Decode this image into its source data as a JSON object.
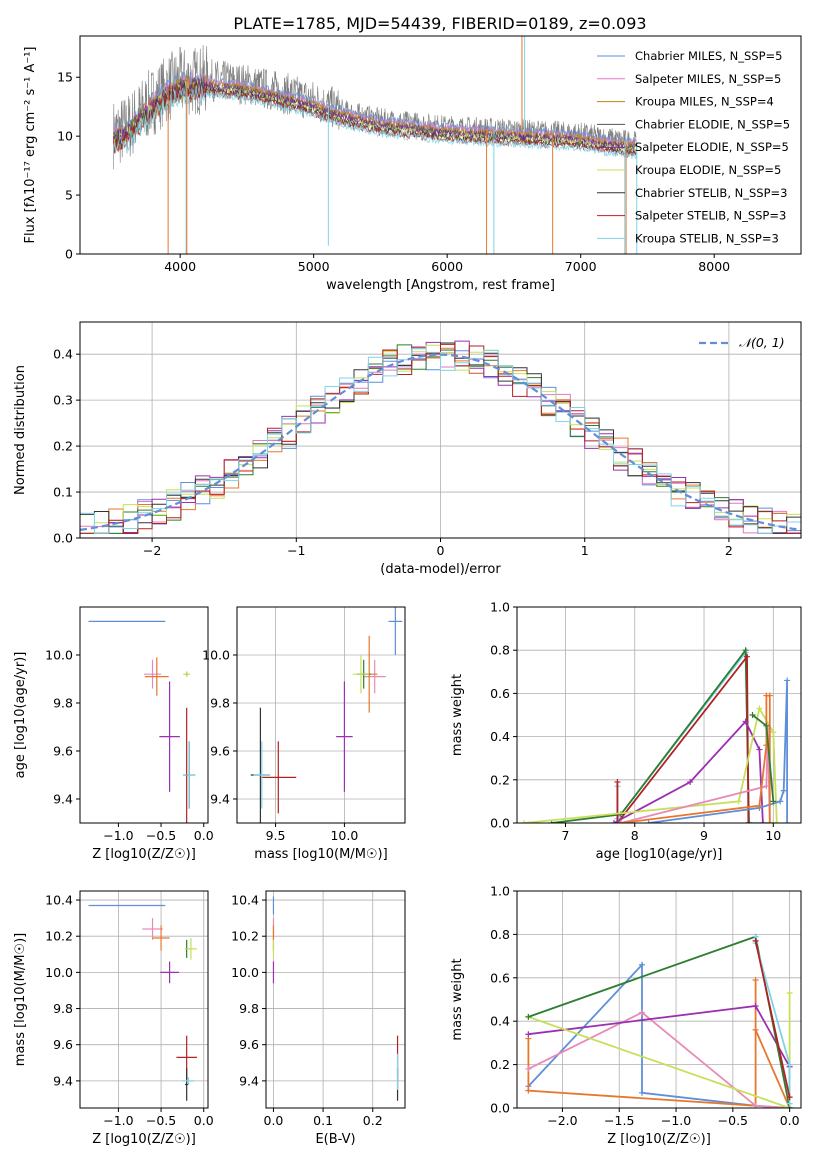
{
  "figure_title": "PLATE=1785, MJD=54439, FIBERID=0189, z=0.093",
  "series_colors": {
    "chabrier_miles": "#5f8fd9",
    "salpeter_miles": "#e377c2",
    "kroupa_miles": "#b8860b",
    "chabrier_elodie": "#555555",
    "salpeter_elodie": "#7b1fa2",
    "kroupa_elodie": "#c6e05a",
    "chabrier_stelib": "#333333",
    "salpeter_stelib": "#b22222",
    "kroupa_stelib": "#7fd3e8",
    "orange": "#e8772e",
    "purple": "#9b30b0",
    "green": "#2e7d32",
    "lime": "#c6e05a",
    "pink": "#e88ab8",
    "blue": "#5f8fd9",
    "cyan": "#7fd3e8",
    "red": "#b22222"
  },
  "chart_data": [
    {
      "id": "spectrum",
      "type": "line",
      "title": "PLATE=1785, MJD=54439, FIBERID=0189, z=0.093",
      "xlabel": "wavelength [Angstrom, rest frame]",
      "ylabel": "Flux [fλ10⁻¹⁷ erg cm⁻² s⁻¹ A⁻¹]",
      "xlim": [
        3250,
        8650
      ],
      "ylim": [
        0,
        18.5
      ],
      "xticks": [
        4000,
        5000,
        6000,
        7000,
        8000
      ],
      "yticks": [
        0,
        5,
        10,
        15
      ],
      "grid": false,
      "legend_position": "top-right",
      "legend": [
        "Chabrier MILES, N_SSP=5",
        "Salpeter MILES, N_SSP=5",
        "Kroupa MILES, N_SSP=4",
        "Chabrier ELODIE, N_SSP=5",
        "Salpeter ELODIE, N_SSP=5",
        "Kroupa ELODIE, N_SSP=5",
        "Chabrier STELIB, N_SSP=3",
        "Salpeter STELIB, N_SSP=3",
        "Kroupa STELIB, N_SSP=3"
      ],
      "legend_colors": [
        "#5f8fd9",
        "#e377c2",
        "#b8860b",
        "#555555",
        "#7b1fa2",
        "#c6e05a",
        "#333333",
        "#b22222",
        "#7fd3e8"
      ],
      "continuum_x": [
        3500,
        3600,
        3750,
        3900,
        4000,
        4200,
        4500,
        4800,
        5000,
        5200,
        5500,
        6000,
        6500,
        7000,
        7200,
        7400
      ],
      "continuum_y": [
        10.2,
        10.6,
        12.5,
        14.0,
        14.6,
        14.8,
        14.4,
        13.6,
        13.0,
        12.2,
        11.4,
        10.8,
        10.5,
        10.2,
        9.8,
        9.5
      ],
      "spikes_x": [
        3910,
        4045,
        4050,
        5110,
        6295,
        6350,
        6560,
        6580,
        6790,
        7330,
        7340,
        7420
      ],
      "spikes_y": [
        0,
        0,
        0,
        0.7,
        0,
        0,
        18.5,
        18.5,
        0,
        0,
        0,
        0
      ]
    },
    {
      "id": "residuals",
      "type": "histogram",
      "xlabel": "(data-model)/error",
      "ylabel": "Normed distribution",
      "xlim": [
        -2.5,
        2.5
      ],
      "ylim": [
        0,
        0.47
      ],
      "xticks": [
        -2,
        -1,
        0,
        1,
        2
      ],
      "yticks": [
        0.0,
        0.1,
        0.2,
        0.3,
        0.4
      ],
      "grid": true,
      "legend_position": "top-right",
      "legend": [
        "𝒩(0, 1)"
      ],
      "reference_curve": {
        "mean": 0,
        "sigma": 1
      }
    },
    {
      "id": "age_vs_z",
      "type": "scatter",
      "xlabel": "Z [log10(Z/Z☉)]",
      "ylabel": "age  [log10(age/yr)]",
      "xlim": [
        -1.45,
        0.05
      ],
      "ylim": [
        9.3,
        10.2
      ],
      "xticks": [
        -1.0,
        -0.5,
        0.0
      ],
      "yticks": [
        9.4,
        9.6,
        9.8,
        10.0
      ],
      "grid": false,
      "points": [
        {
          "x": -0.9,
          "y": 10.14,
          "xerr": 0.45,
          "yerr": 0.0,
          "color": "#5f8fd9"
        },
        {
          "x": -0.6,
          "y": 9.92,
          "xerr": 0.1,
          "yerr": 0.06,
          "color": "#e88ab8"
        },
        {
          "x": -0.55,
          "y": 9.91,
          "xerr": 0.14,
          "yerr": 0.08,
          "color": "#e8772e"
        },
        {
          "x": -0.2,
          "y": 9.92,
          "xerr": 0.02,
          "yerr": 0.01,
          "color": "#2e7d32"
        },
        {
          "x": -0.2,
          "y": 9.92,
          "xerr": 0.04,
          "yerr": 0.01,
          "color": "#c6e05a"
        },
        {
          "x": -0.4,
          "y": 9.66,
          "xerr": 0.12,
          "yerr": 0.23,
          "color": "#9b30b0"
        },
        {
          "x": -0.2,
          "y": 9.5,
          "xerr": 0.02,
          "yerr": 0.28,
          "color": "#b22222"
        },
        {
          "x": -0.17,
          "y": 9.5,
          "xerr": 0.07,
          "yerr": 0.14,
          "color": "#333333"
        },
        {
          "x": -0.17,
          "y": 9.5,
          "xerr": 0.07,
          "yerr": 0.14,
          "color": "#7fd3e8"
        }
      ]
    },
    {
      "id": "age_vs_mass",
      "type": "scatter",
      "xlabel": "mass [log10(M/M☉)]",
      "ylabel": "",
      "xlim": [
        9.22,
        10.44
      ],
      "ylim": [
        9.3,
        10.2
      ],
      "xticks": [
        9.5,
        10.0
      ],
      "yticks": [
        9.4,
        9.6,
        9.8,
        10.0
      ],
      "grid": true,
      "points": [
        {
          "x": 10.37,
          "y": 10.14,
          "xerr": 0.05,
          "yerr": 0.14,
          "color": "#5f8fd9"
        },
        {
          "x": 10.22,
          "y": 9.91,
          "xerr": 0.08,
          "yerr": 0.07,
          "color": "#e88ab8"
        },
        {
          "x": 10.18,
          "y": 9.92,
          "xerr": 0.06,
          "yerr": 0.16,
          "color": "#e8772e"
        },
        {
          "x": 10.14,
          "y": 9.92,
          "xerr": 0.05,
          "yerr": 0.06,
          "color": "#2e7d32"
        },
        {
          "x": 10.12,
          "y": 9.92,
          "xerr": 0.06,
          "yerr": 0.08,
          "color": "#c6e05a"
        },
        {
          "x": 10.0,
          "y": 9.66,
          "xerr": 0.06,
          "yerr": 0.23,
          "color": "#9b30b0"
        },
        {
          "x": 9.52,
          "y": 9.49,
          "xerr": 0.13,
          "yerr": 0.15,
          "color": "#b22222"
        },
        {
          "x": 9.39,
          "y": 9.5,
          "xerr": 0.07,
          "yerr": 0.28,
          "color": "#333333"
        },
        {
          "x": 9.4,
          "y": 9.5,
          "xerr": 0.06,
          "yerr": 0.14,
          "color": "#7fd3e8"
        }
      ]
    },
    {
      "id": "weight_vs_age",
      "type": "line",
      "xlabel": "age  [log10(age/yr)]",
      "ylabel": "mass weight",
      "xlim": [
        6.3,
        10.4
      ],
      "ylim": [
        0,
        1.0
      ],
      "xticks": [
        7,
        8,
        9,
        10
      ],
      "yticks": [
        0.0,
        0.2,
        0.4,
        0.6,
        0.8,
        1.0
      ],
      "grid": true,
      "series": [
        {
          "color": "#7fd3e8",
          "x": [
            7.75,
            7.75,
            9.6,
            9.65,
            9.95
          ],
          "y": [
            0.17,
            0.02,
            0.79,
            0.0,
            0.0
          ]
        },
        {
          "color": "#2e7d32",
          "x": [
            6.8,
            7.8,
            9.6,
            9.65
          ],
          "y": [
            0.0,
            0.04,
            0.8,
            0.0
          ]
        },
        {
          "color": "#b22222",
          "x": [
            7.75,
            7.75,
            9.62,
            9.64
          ],
          "y": [
            0.19,
            0.0,
            0.77,
            0.0
          ]
        },
        {
          "color": "#9b30b0",
          "x": [
            7.7,
            8.8,
            9.6,
            9.8,
            9.85
          ],
          "y": [
            0.0,
            0.19,
            0.47,
            0.34,
            0.0
          ]
        },
        {
          "color": "#c6e05a",
          "x": [
            6.4,
            9.5,
            9.8,
            10.0,
            10.05,
            10.0
          ],
          "y": [
            0.0,
            0.1,
            0.53,
            0.42,
            0.0,
            0.0
          ]
        },
        {
          "color": "#e88ab8",
          "x": [
            7.8,
            9.9,
            9.92,
            9.95
          ],
          "y": [
            0.0,
            0.17,
            0.44,
            0.0
          ]
        },
        {
          "color": "#5f8fd9",
          "x": [
            8.2,
            9.8,
            10.1,
            10.15,
            10.2,
            10.2
          ],
          "y": [
            0.0,
            0.07,
            0.1,
            0.15,
            0.66,
            0.0
          ]
        },
        {
          "color": "#e8772e",
          "x": [
            7.8,
            9.8,
            9.9,
            9.9,
            9.95,
            9.95
          ],
          "y": [
            0.0,
            0.08,
            0.36,
            0.59,
            0.59,
            0.0
          ]
        },
        {
          "color": "#2e7d32",
          "x": [
            9.7,
            9.9,
            10.0
          ],
          "y": [
            0.5,
            0.45,
            0.1
          ]
        }
      ]
    },
    {
      "id": "mass_vs_z",
      "type": "scatter",
      "xlabel": "Z [log10(Z/Z☉)]",
      "ylabel": "mass [log10(M/M☉)]",
      "xlim": [
        -1.45,
        0.05
      ],
      "ylim": [
        9.25,
        10.45
      ],
      "xticks": [
        -1.0,
        -0.5,
        0.0
      ],
      "yticks": [
        9.4,
        9.6,
        9.8,
        10.0,
        10.2,
        10.4
      ],
      "grid": true,
      "points": [
        {
          "x": -0.9,
          "y": 10.37,
          "xerr": 0.45,
          "yerr": 0.0,
          "color": "#5f8fd9"
        },
        {
          "x": -0.6,
          "y": 10.24,
          "xerr": 0.12,
          "yerr": 0.06,
          "color": "#e88ab8"
        },
        {
          "x": -0.5,
          "y": 10.19,
          "xerr": 0.1,
          "yerr": 0.07,
          "color": "#e8772e"
        },
        {
          "x": -0.2,
          "y": 10.13,
          "xerr": 0.02,
          "yerr": 0.05,
          "color": "#2e7d32"
        },
        {
          "x": -0.15,
          "y": 10.13,
          "xerr": 0.07,
          "yerr": 0.06,
          "color": "#c6e05a"
        },
        {
          "x": -0.4,
          "y": 10.0,
          "xerr": 0.11,
          "yerr": 0.06,
          "color": "#9b30b0"
        },
        {
          "x": -0.2,
          "y": 9.53,
          "xerr": 0.12,
          "yerr": 0.12,
          "color": "#b22222"
        },
        {
          "x": -0.2,
          "y": 9.38,
          "xerr": 0.02,
          "yerr": 0.09,
          "color": "#333333"
        },
        {
          "x": -0.18,
          "y": 9.4,
          "xerr": 0.07,
          "yerr": 0.02,
          "color": "#7fd3e8"
        }
      ]
    },
    {
      "id": "mass_vs_ebv",
      "type": "scatter",
      "xlabel": "E(B-V)",
      "ylabel": "",
      "xlim": [
        -0.015,
        0.265
      ],
      "ylim": [
        9.25,
        10.45
      ],
      "xticks": [
        0.0,
        0.1,
        0.2
      ],
      "yticks": [
        9.4,
        9.6,
        9.8,
        10.0,
        10.2,
        10.4
      ],
      "grid": true,
      "points": [
        {
          "x": 0.0,
          "y": 10.37,
          "xerr": 0.0,
          "yerr": 0.05,
          "color": "#5f8fd9"
        },
        {
          "x": 0.0,
          "y": 10.24,
          "xerr": 0.0,
          "yerr": 0.06,
          "color": "#e88ab8"
        },
        {
          "x": 0.0,
          "y": 10.19,
          "xerr": 0.0,
          "yerr": 0.07,
          "color": "#e8772e"
        },
        {
          "x": 0.0,
          "y": 10.13,
          "xerr": 0.0,
          "yerr": 0.05,
          "color": "#c6e05a"
        },
        {
          "x": 0.0,
          "y": 10.0,
          "xerr": 0.0,
          "yerr": 0.06,
          "color": "#9b30b0"
        },
        {
          "x": 0.25,
          "y": 9.53,
          "xerr": 0.0,
          "yerr": 0.12,
          "color": "#b22222"
        },
        {
          "x": 0.25,
          "y": 9.38,
          "xerr": 0.0,
          "yerr": 0.09,
          "color": "#333333"
        },
        {
          "x": 0.25,
          "y": 9.45,
          "xerr": 0.0,
          "yerr": 0.1,
          "color": "#7fd3e8"
        }
      ]
    },
    {
      "id": "weight_vs_z",
      "type": "line",
      "xlabel": "Z [log10(Z/Z☉)]",
      "ylabel": "mass weight",
      "xlim": [
        -2.4,
        0.1
      ],
      "ylim": [
        0,
        1.0
      ],
      "xticks": [
        -2.0,
        -1.5,
        -1.0,
        -0.5,
        0.0
      ],
      "yticks": [
        0.0,
        0.2,
        0.4,
        0.6,
        0.8,
        1.0
      ],
      "grid": true,
      "series": [
        {
          "color": "#5f8fd9",
          "x": [
            -2.3,
            -1.3,
            -1.3,
            -0.3,
            0.0
          ],
          "y": [
            0.1,
            0.66,
            0.07,
            0.01,
            0.0
          ]
        },
        {
          "color": "#e8772e",
          "x": [
            -2.3,
            -2.3,
            -0.3,
            -0.3,
            -0.3,
            0.0
          ],
          "y": [
            0.32,
            0.08,
            0.01,
            0.59,
            0.36,
            0.0
          ]
        },
        {
          "color": "#e88ab8",
          "x": [
            -2.3,
            -1.3,
            -0.3,
            0.0
          ],
          "y": [
            0.18,
            0.44,
            0.01,
            0.0
          ]
        },
        {
          "color": "#9b30b0",
          "x": [
            -2.3,
            -0.3,
            0.0,
            0.0
          ],
          "y": [
            0.34,
            0.47,
            0.19,
            0.0
          ]
        },
        {
          "color": "#c6e05a",
          "x": [
            -2.3,
            0.0,
            0.0,
            0.0
          ],
          "y": [
            0.42,
            0.0,
            0.53,
            0.0
          ]
        },
        {
          "color": "#2e7d32",
          "x": [
            -2.3,
            -0.3,
            0.0
          ],
          "y": [
            0.42,
            0.79,
            0.0
          ]
        },
        {
          "color": "#7fd3e8",
          "x": [
            -0.3,
            -0.3,
            0.0,
            0.0
          ],
          "y": [
            0.79,
            0.76,
            0.2,
            0.02
          ]
        },
        {
          "color": "#b22222",
          "x": [
            -0.3,
            0.0
          ],
          "y": [
            0.77,
            0.05
          ]
        }
      ]
    }
  ]
}
